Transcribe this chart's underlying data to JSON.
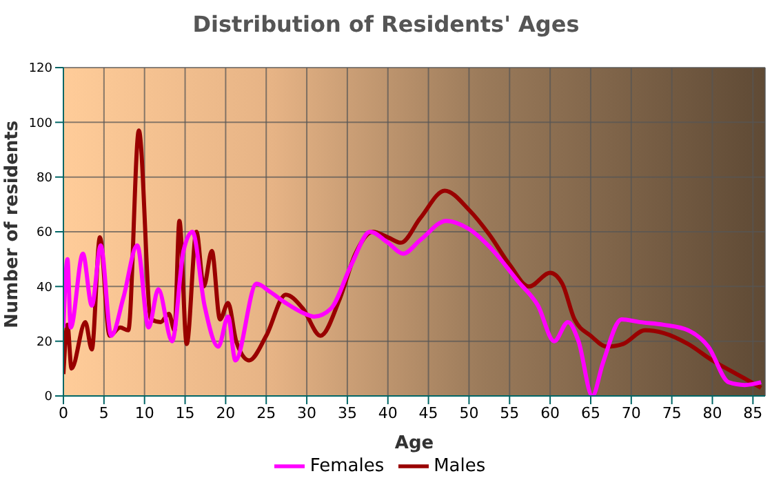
{
  "chart_data": {
    "type": "line",
    "title": "Distribution of Residents' Ages",
    "xlabel": "Age",
    "ylabel": "Number of residents",
    "xlim": [
      0,
      86.5
    ],
    "xticks": [
      0,
      5,
      10,
      15,
      20,
      25,
      30,
      35,
      40,
      45,
      50,
      55,
      60,
      65,
      70,
      75,
      80,
      85
    ],
    "ylim": [
      0,
      120
    ],
    "yticks": [
      0,
      20,
      40,
      60,
      80,
      100,
      120
    ],
    "grid": true,
    "legend": "bottom",
    "marker": "none",
    "line_style": "solid",
    "series": [
      {
        "name": "Males",
        "color": "#990000",
        "x": [
          0,
          0.5,
          1,
          2.7,
          3.5,
          4.5,
          5.7,
          7,
          8,
          9.3,
          10.8,
          12,
          13,
          13.7,
          14.3,
          15.2,
          16.4,
          17.3,
          18.3,
          19.3,
          20.3,
          21.3,
          22.9,
          25,
          27.4,
          29.5,
          31.7,
          34,
          36,
          38.1,
          40,
          41.6,
          44,
          47,
          50,
          52.5,
          55,
          57.4,
          60,
          61.5,
          63,
          65,
          67,
          69,
          71.7,
          74,
          77,
          80,
          83,
          86
        ],
        "values": [
          8,
          26,
          10,
          27,
          17,
          58,
          22,
          25,
          24,
          97,
          28,
          27,
          30,
          24,
          64,
          19,
          60,
          40,
          53,
          28,
          34,
          20,
          13,
          22,
          37,
          32,
          22,
          35,
          52,
          60,
          58,
          56,
          65,
          75,
          68,
          59,
          48,
          40,
          45,
          41,
          28,
          22,
          18,
          19,
          24,
          23,
          19,
          13,
          8,
          3
        ]
      },
      {
        "name": "Females",
        "color": "#ff00ff",
        "x": [
          0,
          0.5,
          0.9,
          2.4,
          3.5,
          4.6,
          5.9,
          7.4,
          9.1,
          10.5,
          11.7,
          13.4,
          14.8,
          15.9,
          17.4,
          19.1,
          20.3,
          21.2,
          23.8,
          25.5,
          27.4,
          29.8,
          30.9,
          33,
          35.5,
          37.8,
          40,
          41.9,
          44,
          47.2,
          50,
          53,
          56,
          58.5,
          60.5,
          62.2,
          63.5,
          65.2,
          66.5,
          68.8,
          71,
          74,
          77,
          79.5,
          82,
          84,
          86
        ],
        "values": [
          25,
          50,
          25,
          52,
          33,
          55,
          22,
          36,
          55,
          25,
          39,
          20,
          53,
          60,
          33,
          18,
          29,
          13,
          41,
          38,
          34,
          30,
          29,
          32,
          48,
          60,
          56,
          52,
          57,
          64,
          61,
          53,
          42,
          33,
          20,
          27,
          20,
          0,
          12,
          28,
          27,
          26,
          24,
          18,
          5,
          4,
          5
        ]
      }
    ]
  }
}
